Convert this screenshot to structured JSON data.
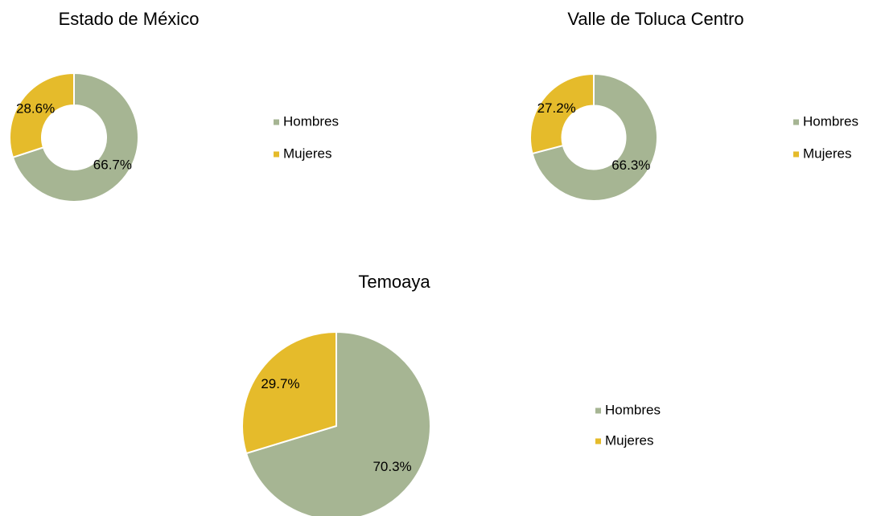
{
  "chart_data": [
    {
      "type": "pie",
      "donut": true,
      "title": "Estado de México",
      "categories": [
        "Hombres",
        "Mujeres"
      ],
      "values": [
        66.7,
        28.6
      ],
      "value_labels": [
        "66.7%",
        "28.6%"
      ],
      "colors": [
        "#a6b593",
        "#e5bb2b"
      ]
    },
    {
      "type": "pie",
      "donut": true,
      "title": "Valle de Toluca Centro",
      "categories": [
        "Hombres",
        "Mujeres"
      ],
      "values": [
        66.3,
        27.2
      ],
      "value_labels": [
        "66.3%",
        "27.2%"
      ],
      "colors": [
        "#a6b593",
        "#e5bb2b"
      ]
    },
    {
      "type": "pie",
      "donut": false,
      "title": "Temoaya",
      "categories": [
        "Hombres",
        "Mujeres"
      ],
      "values": [
        70.3,
        29.7
      ],
      "value_labels": [
        "70.3%",
        "29.7%"
      ],
      "colors": [
        "#a6b593",
        "#e5bb2b"
      ]
    }
  ]
}
